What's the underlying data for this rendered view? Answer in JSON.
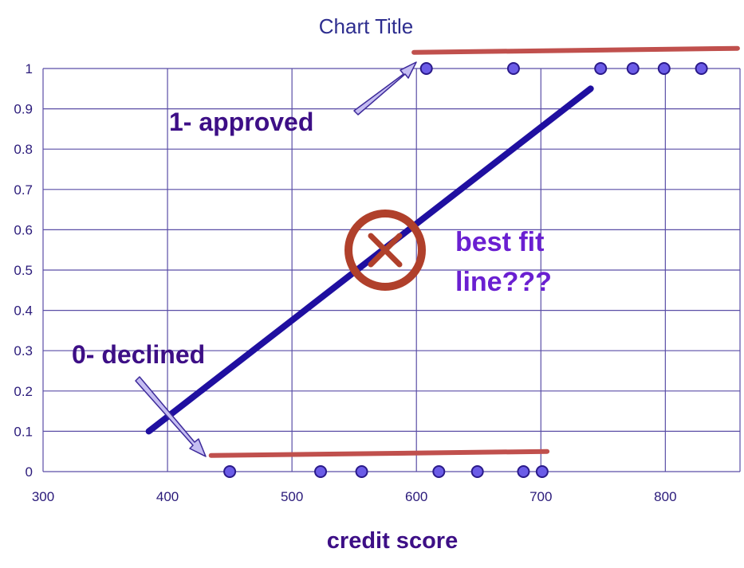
{
  "chart_data": {
    "type": "scatter",
    "title": "Chart Title",
    "xlabel": "credit score",
    "ylabel": "",
    "xlim": [
      300,
      860
    ],
    "ylim": [
      0,
      1
    ],
    "x_ticks": [
      300,
      400,
      500,
      600,
      700,
      800
    ],
    "y_ticks": [
      0,
      0.1,
      0.2,
      0.3,
      0.4,
      0.5,
      0.6,
      0.7,
      0.8,
      0.9,
      1
    ],
    "grid": true,
    "legend": "none",
    "points": [
      {
        "x": 450,
        "y": 0
      },
      {
        "x": 523,
        "y": 0
      },
      {
        "x": 556,
        "y": 0
      },
      {
        "x": 618,
        "y": 0
      },
      {
        "x": 649,
        "y": 0
      },
      {
        "x": 686,
        "y": 0
      },
      {
        "x": 701,
        "y": 0
      },
      {
        "x": 608,
        "y": 1
      },
      {
        "x": 678,
        "y": 1
      },
      {
        "x": 748,
        "y": 1
      },
      {
        "x": 774,
        "y": 1
      },
      {
        "x": 799,
        "y": 1
      },
      {
        "x": 829,
        "y": 1
      }
    ],
    "best_fit_line": {
      "x": [
        385,
        740
      ],
      "y": [
        0.1,
        0.95
      ]
    },
    "class_lines": [
      {
        "x": [
          435,
          705
        ],
        "y": [
          0.04,
          0.05
        ]
      },
      {
        "x": [
          598,
          858
        ],
        "y": [
          1.04,
          1.05
        ]
      }
    ],
    "annotations": {
      "approved": "1- approved",
      "declined": "0- declined",
      "best_fit_line1": "best fit",
      "best_fit_line2": "line???"
    },
    "colors": {
      "points": "#6b5ce7",
      "point_stroke": "#2a1a8a",
      "best_fit": "#1f0fa0",
      "class_lines": "#c0504d",
      "x_mark": "#b0402b",
      "arrow_fill": "#c5bdf2",
      "arrow_stroke": "#3d2a9a"
    }
  }
}
